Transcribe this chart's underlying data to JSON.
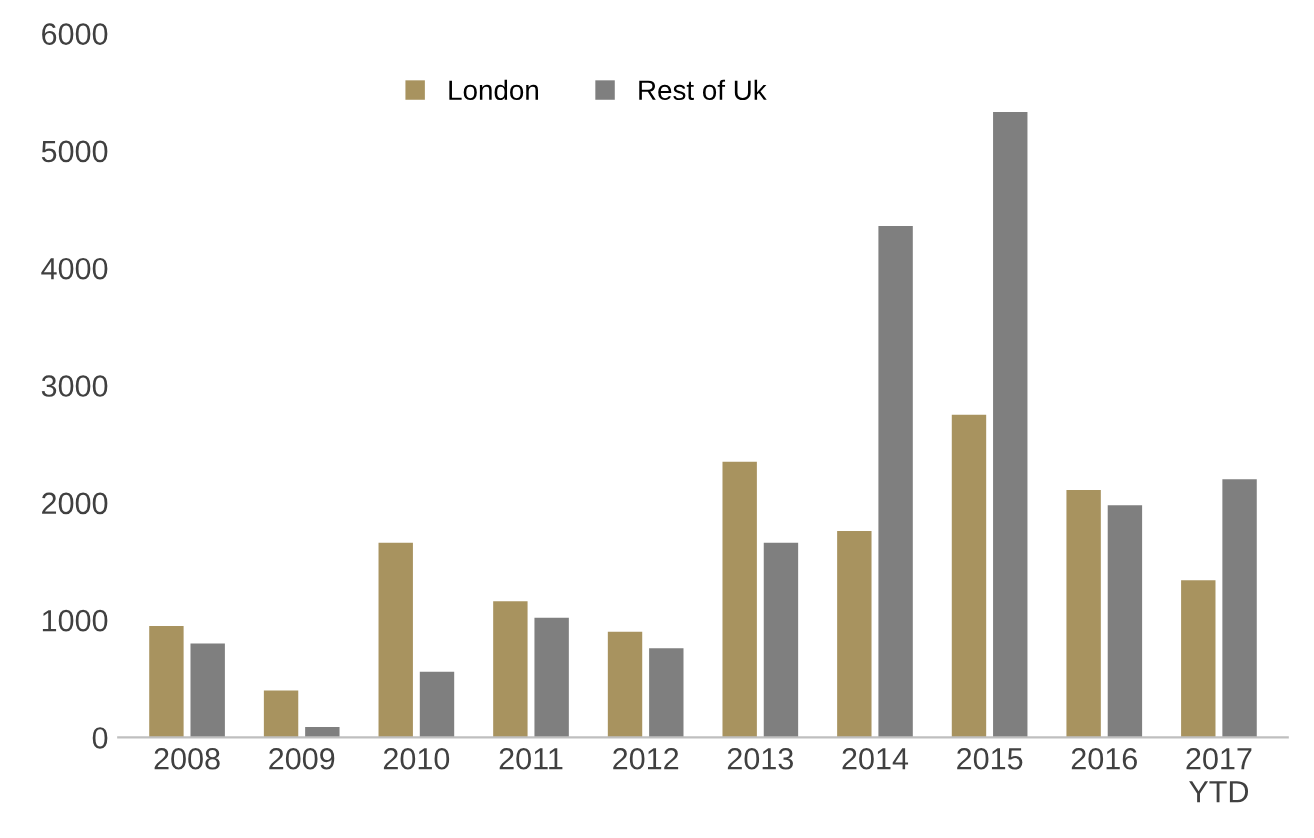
{
  "chart_data": {
    "type": "bar",
    "categories": [
      "2008",
      "2009",
      "2010",
      "2011",
      "2012",
      "2013",
      "2014",
      "2015",
      "2016",
      "2017\nYTD"
    ],
    "series": [
      {
        "name": "London",
        "color": "#a8935f",
        "values": [
          950,
          400,
          1660,
          1160,
          900,
          2350,
          1760,
          2750,
          2110,
          1340
        ]
      },
      {
        "name": "Rest of Uk",
        "color": "#7f7f7f",
        "values": [
          800,
          90,
          560,
          1020,
          760,
          1660,
          4360,
          5330,
          1980,
          2200
        ]
      }
    ],
    "ylim": [
      0,
      6000
    ],
    "yticks": [
      0,
      1000,
      2000,
      3000,
      4000,
      5000,
      6000
    ],
    "grid": false,
    "legend": "top"
  }
}
